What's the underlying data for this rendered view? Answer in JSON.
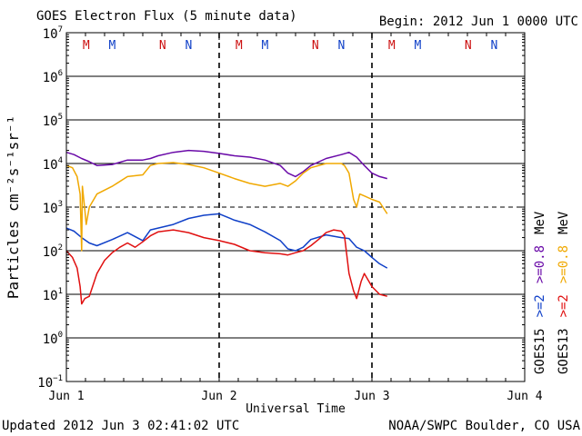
{
  "header": {
    "title": "GOES Electron Flux (5 minute data)",
    "begin": "Begin: 2012 Jun 1 0000 UTC"
  },
  "footer": {
    "updated": "Updated 2012 Jun  3 02:41:02 UTC",
    "credit": "NOAA/SWPC Boulder, CO USA"
  },
  "colors": {
    "axis": "#000000",
    "purple": "#6a0aa8",
    "orange": "#f0a800",
    "blue": "#1040c8",
    "red": "#e01010",
    "marker_m": "#cc1010",
    "marker_n": "#1040c8"
  },
  "chart_data": {
    "type": "line",
    "title": "GOES Electron Flux (5 minute data)",
    "xlabel": "Universal Time",
    "ylabel": "Particles cm⁻²s⁻¹sr⁻¹",
    "x_unit": "days since 2012 Jun 1 0000 UTC",
    "xlim": [
      0,
      3
    ],
    "x_ticks": [
      {
        "x": 0,
        "label": "Jun 1"
      },
      {
        "x": 1,
        "label": "Jun 2"
      },
      {
        "x": 2,
        "label": "Jun 3"
      },
      {
        "x": 3,
        "label": "Jun 4"
      }
    ],
    "y_scale": "log",
    "ylim": [
      0.1,
      10000000
    ],
    "y_ticks": [
      {
        "value": 0.1,
        "base": "10",
        "exp": "−1"
      },
      {
        "value": 1,
        "base": "10",
        "exp": "0"
      },
      {
        "value": 10,
        "base": "10",
        "exp": "1"
      },
      {
        "value": 100,
        "base": "10",
        "exp": "2"
      },
      {
        "value": 1000,
        "base": "10",
        "exp": "3"
      },
      {
        "value": 10000,
        "base": "10",
        "exp": "4"
      },
      {
        "value": 100000,
        "base": "10",
        "exp": "5"
      },
      {
        "value": 1000000,
        "base": "10",
        "exp": "6"
      },
      {
        "value": 10000000,
        "base": "10",
        "exp": "7"
      }
    ],
    "grid_lines": [
      {
        "value": 1,
        "style": "solid"
      },
      {
        "value": 10,
        "style": "solid"
      },
      {
        "value": 100,
        "style": "solid"
      },
      {
        "value": 1000,
        "style": "dashed"
      },
      {
        "value": 10000,
        "style": "solid"
      },
      {
        "value": 100000,
        "style": "solid"
      },
      {
        "value": 1000000,
        "style": "solid"
      }
    ],
    "day_dividers": [
      1,
      2
    ],
    "markers": [
      {
        "x": 0.13,
        "text": "M",
        "color_key": "marker_m"
      },
      {
        "x": 0.3,
        "text": "M",
        "color_key": "marker_n"
      },
      {
        "x": 0.63,
        "text": "N",
        "color_key": "marker_m"
      },
      {
        "x": 0.8,
        "text": "N",
        "color_key": "marker_n"
      },
      {
        "x": 1.13,
        "text": "M",
        "color_key": "marker_m"
      },
      {
        "x": 1.3,
        "text": "M",
        "color_key": "marker_n"
      },
      {
        "x": 1.63,
        "text": "N",
        "color_key": "marker_m"
      },
      {
        "x": 1.8,
        "text": "N",
        "color_key": "marker_n"
      },
      {
        "x": 2.13,
        "text": "M",
        "color_key": "marker_m"
      },
      {
        "x": 2.3,
        "text": "M",
        "color_key": "marker_n"
      },
      {
        "x": 2.63,
        "text": "N",
        "color_key": "marker_m"
      },
      {
        "x": 2.8,
        "text": "N",
        "color_key": "marker_n"
      }
    ],
    "legend": [
      {
        "text": "GOES15",
        "color_key": "axis",
        "group": 0
      },
      {
        "text": ">=2",
        "color_key": "blue",
        "group": 0
      },
      {
        "text": ">=0.8",
        "color_key": "purple",
        "group": 0
      },
      {
        "text": "MeV",
        "color_key": "axis",
        "group": 0
      },
      {
        "text": "GOES13",
        "color_key": "axis",
        "group": 1
      },
      {
        "text": ">=2",
        "color_key": "red",
        "group": 1
      },
      {
        "text": ">=0.8",
        "color_key": "orange",
        "group": 1
      },
      {
        "text": "MeV",
        "color_key": "axis",
        "group": 1
      }
    ],
    "series": [
      {
        "name": "GOES15 >=0.8 MeV",
        "color_key": "purple",
        "x": [
          0,
          0.05,
          0.1,
          0.15,
          0.2,
          0.3,
          0.4,
          0.5,
          0.55,
          0.6,
          0.7,
          0.8,
          0.9,
          1.0,
          1.1,
          1.2,
          1.3,
          1.4,
          1.45,
          1.5,
          1.55,
          1.6,
          1.7,
          1.8,
          1.85,
          1.9,
          1.95,
          2.0,
          2.05,
          2.1
        ],
        "y": [
          18000,
          16000,
          13000,
          11000,
          9000,
          9500,
          12000,
          12000,
          13000,
          15000,
          18000,
          20000,
          19000,
          17000,
          15000,
          14000,
          12000,
          9000,
          6000,
          5000,
          6500,
          9000,
          13000,
          16000,
          18000,
          14000,
          9000,
          6000,
          5000,
          4500
        ]
      },
      {
        "name": "GOES15 >=2 MeV",
        "color_key": "blue",
        "x": [
          0,
          0.05,
          0.1,
          0.15,
          0.2,
          0.3,
          0.4,
          0.5,
          0.55,
          0.6,
          0.7,
          0.8,
          0.9,
          1.0,
          1.1,
          1.2,
          1.3,
          1.4,
          1.45,
          1.5,
          1.55,
          1.6,
          1.7,
          1.8,
          1.85,
          1.9,
          1.95,
          2.0,
          2.05,
          2.1
        ],
        "y": [
          330,
          280,
          200,
          150,
          130,
          180,
          260,
          170,
          300,
          330,
          400,
          550,
          650,
          700,
          500,
          400,
          270,
          170,
          110,
          100,
          120,
          180,
          230,
          200,
          190,
          120,
          100,
          70,
          50,
          40
        ]
      },
      {
        "name": "GOES13 >=0.8 MeV",
        "color_key": "orange",
        "x": [
          0,
          0.04,
          0.07,
          0.09,
          0.1,
          0.105,
          0.12,
          0.13,
          0.15,
          0.2,
          0.3,
          0.4,
          0.5,
          0.55,
          0.6,
          0.7,
          0.8,
          0.9,
          1.0,
          1.1,
          1.2,
          1.3,
          1.4,
          1.45,
          1.5,
          1.55,
          1.6,
          1.7,
          1.8,
          1.82,
          1.85,
          1.88,
          1.9,
          1.92,
          1.95,
          2.0,
          2.05,
          2.1
        ],
        "y": [
          9000,
          8000,
          5000,
          2000,
          100,
          3000,
          900,
          400,
          1000,
          2000,
          3000,
          5000,
          5500,
          9000,
          10000,
          10500,
          9500,
          8000,
          6000,
          4500,
          3500,
          3000,
          3500,
          3000,
          4000,
          6000,
          8000,
          10000,
          10000,
          9000,
          6000,
          1500,
          1000,
          2000,
          1800,
          1500,
          1300,
          700
        ]
      },
      {
        "name": "GOES13 >=2 MeV",
        "color_key": "red",
        "x": [
          0,
          0.04,
          0.07,
          0.09,
          0.1,
          0.12,
          0.15,
          0.2,
          0.25,
          0.3,
          0.35,
          0.4,
          0.45,
          0.5,
          0.55,
          0.6,
          0.7,
          0.8,
          0.9,
          1.0,
          1.1,
          1.2,
          1.3,
          1.4,
          1.45,
          1.5,
          1.55,
          1.6,
          1.65,
          1.7,
          1.75,
          1.8,
          1.82,
          1.85,
          1.88,
          1.9,
          1.93,
          1.95,
          2.0,
          2.05,
          2.1
        ],
        "y": [
          100,
          70,
          40,
          15,
          6,
          8,
          9,
          30,
          60,
          90,
          120,
          150,
          120,
          160,
          220,
          270,
          300,
          260,
          200,
          170,
          140,
          100,
          90,
          85,
          80,
          90,
          100,
          130,
          180,
          260,
          300,
          280,
          220,
          30,
          12,
          8,
          20,
          30,
          15,
          10,
          9
        ]
      }
    ]
  }
}
